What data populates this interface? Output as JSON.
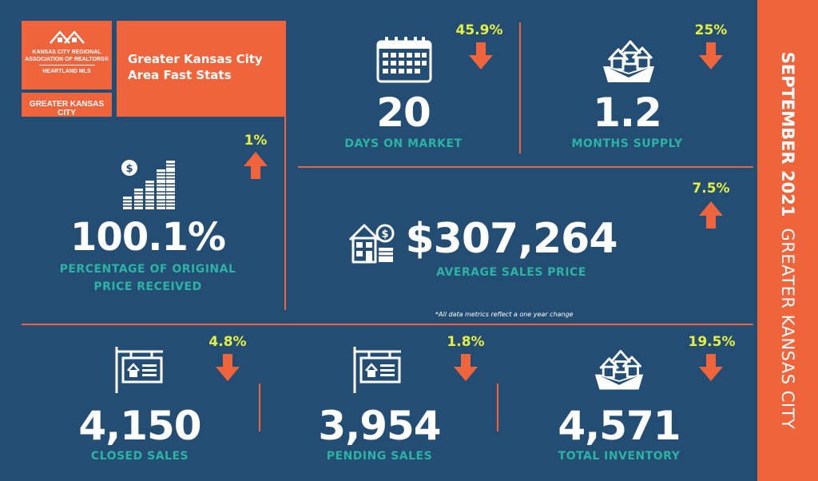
{
  "logo": {
    "line1": "KANSAS CITY REGIONAL",
    "line2": "ASSOCIATION OF REALTORS®",
    "line3": "HEARTLAND MLS"
  },
  "title": "Greater Kansas City Area Fast Stats",
  "region_tag": "GREATER KANSAS CITY",
  "sidebar": {
    "month": "SEPTEMBER 2021",
    "region": "GREATER KANSAS CITY"
  },
  "stats": {
    "days_on_market": {
      "value": "20",
      "label": "DAYS ON MARKET",
      "change": "45.9%",
      "direction": "down",
      "icon": "calendar-icon"
    },
    "months_supply": {
      "value": "1.2",
      "label": "MONTHS SUPPLY",
      "change": "25%",
      "direction": "down",
      "icon": "houses-box-icon"
    },
    "pct_original_price": {
      "value": "100.1%",
      "label_line1": "PERCENTAGE OF ORIGINAL",
      "label_line2": "PRICE RECEIVED",
      "change": "1%",
      "direction": "up",
      "icon": "coin-stack-icon"
    },
    "avg_sales_price": {
      "value": "$307,264",
      "label": "AVERAGE SALES PRICE",
      "change": "7.5%",
      "direction": "up",
      "icon": "house-dollar-icon"
    },
    "closed_sales": {
      "value": "4,150",
      "label": "CLOSED SALES",
      "change": "4.8%",
      "direction": "down",
      "icon": "sale-sign-icon"
    },
    "pending_sales": {
      "value": "3,954",
      "label": "PENDING SALES",
      "change": "1.8%",
      "direction": "down",
      "icon": "sale-sign-icon"
    },
    "total_inventory": {
      "value": "4,571",
      "label": "TOTAL INVENTORY",
      "change": "19.5%",
      "direction": "down",
      "icon": "houses-box-icon"
    }
  },
  "footnote": "*All data metrics reflect a one year change",
  "colors": {
    "background": "#244d73",
    "accent": "#f0643c",
    "label": "#2bb3a3",
    "change": "#e6f040",
    "text": "#ffffff"
  }
}
